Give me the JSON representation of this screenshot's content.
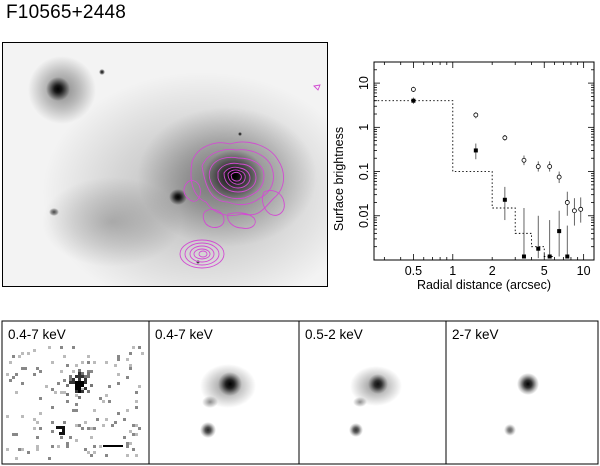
{
  "figure": {
    "title": "F10565+2448"
  },
  "panels": [
    {
      "label": "0.4-7 keV"
    },
    {
      "label": "0.4-7 keV"
    },
    {
      "label": "0.5-2 keV"
    },
    {
      "label": "2-7 keV"
    }
  ],
  "chart_data": {
    "type": "scatter",
    "xlabel": "Radial distance (arcsec)",
    "ylabel": "Surface brightness",
    "xscale": "log",
    "yscale": "log",
    "xlim": [
      0.25,
      12
    ],
    "ylim": [
      0.001,
      30
    ],
    "xticks": [
      0.5,
      1,
      2,
      5,
      10
    ],
    "yticks": [
      10,
      1,
      0.1,
      0.01
    ],
    "xtick_labels": [
      "0.5",
      "1",
      "2",
      "5",
      "10"
    ],
    "ytick_labels": [
      "10",
      "1",
      "0.1",
      "0.01"
    ],
    "series": [
      {
        "marker": "filled-square",
        "points": [
          {
            "x": 0.5,
            "y": 4.0,
            "lo": 3.4,
            "hi": 4.7
          },
          {
            "x": 1.5,
            "y": 0.3,
            "lo": 0.19,
            "hi": 0.43
          },
          {
            "x": 2.5,
            "y": 0.023,
            "lo": 0.008,
            "hi": 0.045
          },
          {
            "x": 3.5,
            "y": 0.0012,
            "lo": 0.0011,
            "hi": 0.015
          },
          {
            "x": 4.5,
            "y": 0.0018,
            "lo": 0.0011,
            "hi": 0.01
          },
          {
            "x": 5.5,
            "y": 0.0012,
            "lo": 0.0011,
            "hi": 0.008
          },
          {
            "x": 6.5,
            "y": 0.0045,
            "lo": 0.0012,
            "hi": 0.013
          },
          {
            "x": 7.5,
            "y": 0.0012,
            "lo": 0.0011,
            "hi": 0.006
          }
        ]
      },
      {
        "marker": "open-circle",
        "points": [
          {
            "x": 0.5,
            "y": 7.2,
            "lo": 6.3,
            "hi": 8.3
          },
          {
            "x": 1.5,
            "y": 1.9,
            "lo": 1.6,
            "hi": 2.2
          },
          {
            "x": 2.5,
            "y": 0.58,
            "lo": 0.5,
            "hi": 0.67
          },
          {
            "x": 3.5,
            "y": 0.18,
            "lo": 0.14,
            "hi": 0.23
          },
          {
            "x": 4.5,
            "y": 0.13,
            "lo": 0.1,
            "hi": 0.17
          },
          {
            "x": 5.5,
            "y": 0.13,
            "lo": 0.1,
            "hi": 0.17
          },
          {
            "x": 6.5,
            "y": 0.075,
            "lo": 0.055,
            "hi": 0.1
          },
          {
            "x": 7.5,
            "y": 0.02,
            "lo": 0.01,
            "hi": 0.035
          },
          {
            "x": 8.5,
            "y": 0.013,
            "lo": 0.006,
            "hi": 0.025
          },
          {
            "x": 9.5,
            "y": 0.014,
            "lo": 0.007,
            "hi": 0.026
          }
        ]
      }
    ],
    "model_line": {
      "style": "dotted",
      "steps": [
        {
          "x0": 0.25,
          "x1": 1,
          "y": 4.0
        },
        {
          "x0": 1,
          "x1": 2,
          "y": 0.1
        },
        {
          "x0": 2,
          "x1": 3,
          "y": 0.015
        },
        {
          "x0": 3,
          "x1": 4,
          "y": 0.004
        },
        {
          "x0": 4,
          "x1": 5,
          "y": 0.002
        },
        {
          "x0": 5,
          "x1": 6,
          "y": 0.0012
        }
      ]
    }
  },
  "colors": {
    "contour": "#d24bd2",
    "frame": "#000000"
  }
}
